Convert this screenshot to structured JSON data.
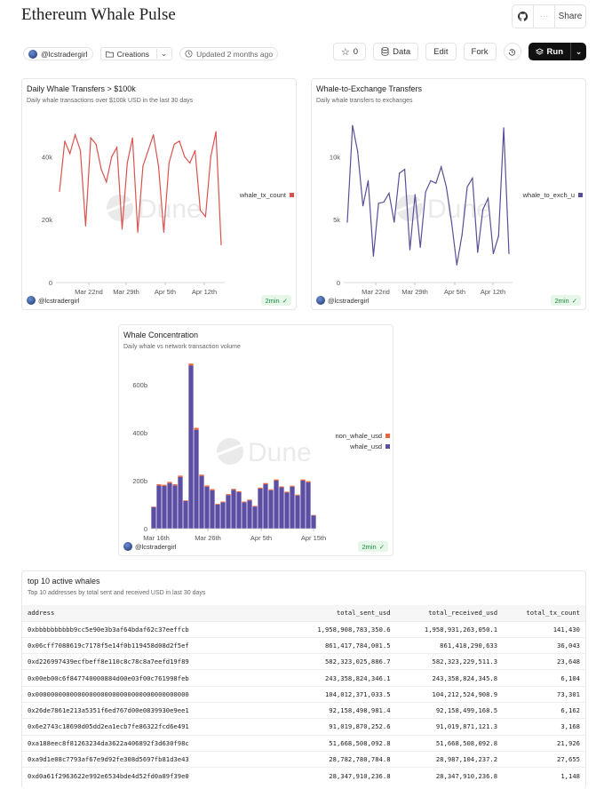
{
  "header": {
    "title": "Ethereum Whale Pulse",
    "share_label": "Share",
    "more_label": "···"
  },
  "meta": {
    "author": "@lcstradergirl",
    "folder": "Creations",
    "updated": "Updated 2 months ago"
  },
  "actions": {
    "star_count": "0",
    "data_label": "Data",
    "edit_label": "Edit",
    "fork_label": "Fork",
    "run_label": "Run"
  },
  "charts": {
    "transfers": {
      "title": "Daily Whale Transfers > $100k",
      "subtitle": "Daily whale transactions over $100k USD in the last 30 days",
      "author": "@lcstradergirl",
      "badge": "2min",
      "watermark": "Dune"
    },
    "exchange": {
      "title": "Whale-to-Exchange Transfers",
      "subtitle": "Daily whale transfers to exchanges",
      "author": "@lcstradergirl",
      "badge": "2min",
      "watermark": "Dune"
    },
    "concentration": {
      "title": "Whale Concentration",
      "subtitle": "Daily whale vs network transaction volume",
      "author": "@lcstradergirl",
      "badge": "2min",
      "watermark": "Dune"
    }
  },
  "chart_data": [
    {
      "type": "line",
      "title": "Daily Whale Transfers > $100k",
      "x_ticks": [
        "Mar 22nd",
        "Mar 29th",
        "Apr 5th",
        "Apr 12th"
      ],
      "y_ticks": [
        "0",
        "20k",
        "40k"
      ],
      "ylim": [
        0,
        52000
      ],
      "color": "#d9534f",
      "series": [
        {
          "name": "whale_tx_count",
          "values": [
            29000,
            45000,
            41000,
            47000,
            42000,
            18000,
            46000,
            44000,
            36000,
            32000,
            40000,
            43000,
            17000,
            38000,
            46000,
            16000,
            37000,
            42000,
            47000,
            37000,
            16000,
            38000,
            44000,
            45000,
            40000,
            38000,
            42000,
            23000,
            21000,
            40000,
            48000,
            12000
          ]
        }
      ],
      "legend": "right"
    },
    {
      "type": "line",
      "title": "Whale-to-Exchange Transfers",
      "x_ticks": [
        "Mar 22nd",
        "Mar 29th",
        "Apr 5th",
        "Apr 12th"
      ],
      "y_ticks": [
        "0",
        "5k",
        "10k"
      ],
      "ylim": [
        0,
        13000
      ],
      "color": "#5b4e96",
      "series": [
        {
          "name": "whale_to_exch_u",
          "values": [
            4800,
            12500,
            10400,
            6100,
            8100,
            2100,
            6300,
            6400,
            7100,
            4800,
            8700,
            9000,
            2600,
            7000,
            2800,
            7200,
            8100,
            7900,
            9200,
            7600,
            4800,
            1400,
            3800,
            7600,
            8300,
            2400,
            5800,
            6700,
            2300,
            3700,
            12300,
            2300
          ]
        }
      ],
      "legend": "right"
    },
    {
      "type": "bar",
      "title": "Whale Concentration",
      "x_ticks": [
        "Mar 16th",
        "Mar 26th",
        "Apr 5th",
        "Apr 15th"
      ],
      "y_ticks": [
        "0",
        "200b",
        "400b",
        "600b"
      ],
      "ylim": [
        0,
        700
      ],
      "stacked": true,
      "series": [
        {
          "name": "whale_usd",
          "color": "#5b4ea3",
          "values": [
            90,
            180,
            178,
            190,
            180,
            215,
            115,
            680,
            412,
            220,
            175,
            160,
            100,
            110,
            140,
            162,
            152,
            110,
            118,
            92,
            167,
            185,
            160,
            200,
            172,
            150,
            175,
            138,
            200,
            193,
            55
          ]
        },
        {
          "name": "non_whale_usd",
          "color": "#e8643a",
          "values": [
            2,
            5,
            5,
            5,
            5,
            6,
            3,
            8,
            8,
            5,
            5,
            5,
            3,
            3,
            4,
            4,
            4,
            3,
            3,
            3,
            4,
            5,
            4,
            5,
            4,
            4,
            4,
            4,
            5,
            5,
            2
          ]
        }
      ],
      "legend": "right"
    }
  ],
  "table": {
    "title": "top 10 active whales",
    "subtitle": "Top 10 addresses by total sent and received USD in last 30 days",
    "columns": [
      "address",
      "total_sent_usd",
      "total_received_usd",
      "total_tx_count"
    ],
    "rows": [
      [
        "0xbbbbbbbbbb9cc5e90e3b3af64bdaf62c37eeffcb",
        "1,958,908,783,350.6",
        "1,958,931,263,050.1",
        "141,430"
      ],
      [
        "0x06cff7088619c7178f5e14f0b119458d08d2f5ef",
        "861,417,784,001.5",
        "861,418,290,633",
        "36,043"
      ],
      [
        "0xd226997439ecfbeff8e110c8c78c8a7eefd19f89",
        "582,323,025,886.7",
        "582,323,229,511.3",
        "23,648"
      ],
      [
        "0x00eb00c6f847740000884d00e03f00c761998feb",
        "243,358,824,346.1",
        "243,358,824,345.8",
        "6,104"
      ],
      [
        "0x0000000000000000000000000000000000000000",
        "104,012,371,033.5",
        "104,212,524,908.9",
        "73,301"
      ],
      [
        "0x26de7861e213a5351f6ed767d00e0839930e9ee1",
        "92,158,498,981.4",
        "92,158,499,168.5",
        "6,162"
      ],
      [
        "0x6e2743c18690d05dd2ea1ecb7fe86322fcd6e491",
        "91,019,870,252.6",
        "91,019,871,121.3",
        "3,168"
      ],
      [
        "0xa188eec8f81263234da3622a406892f3d630f98c",
        "51,668,508,092.8",
        "51,668,508,092.8",
        "21,926"
      ],
      [
        "0xa9d1e08c7793af67e9d92fe308d5697fb81d3e43",
        "28,782,780,784.8",
        "28,987,104,237.2",
        "27,655"
      ],
      [
        "0xd0a61f2963622e992e6534bde4d52fd0a89f39e0",
        "28,347,910,236.8",
        "28,347,910,236.8",
        "1,148"
      ]
    ]
  }
}
